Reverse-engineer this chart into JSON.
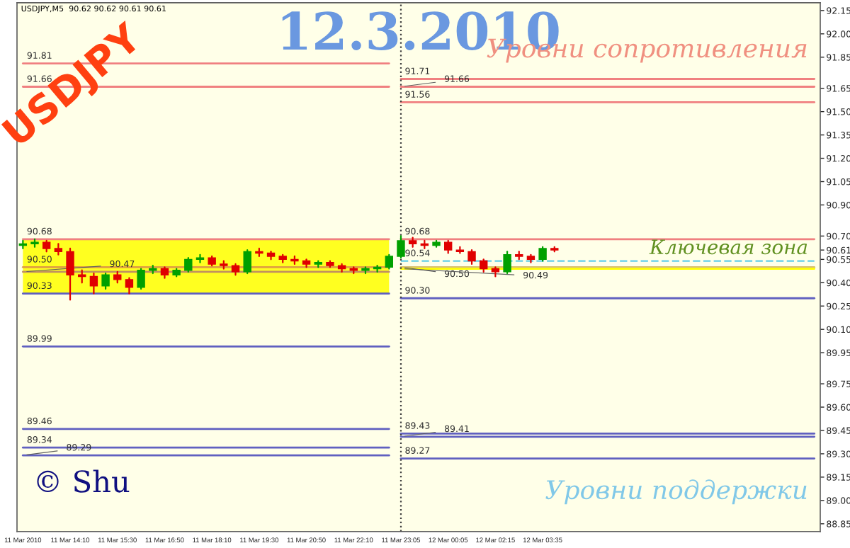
{
  "chart_data": {
    "type": "candlestick",
    "title": "12.3.2010",
    "categories": [
      "11 Mar 2010",
      null,
      null,
      null,
      "11 Mar 14:10",
      null,
      null,
      null,
      "11 Mar 15:30",
      null,
      null,
      null,
      "11 Mar 16:50",
      null,
      null,
      null,
      "11 Mar 18:10",
      null,
      null,
      null,
      "11 Mar 19:30",
      null,
      null,
      null,
      "11 Mar 20:50",
      null,
      null,
      null,
      "11 Mar 22:10",
      null,
      null,
      null,
      "11 Mar 23:05",
      null,
      null,
      null,
      "12 Mar 00:05",
      null,
      null,
      null,
      "12 Mar 02:15",
      null,
      null,
      null,
      "12 Mar 03:35",
      null,
      null,
      null,
      null,
      null,
      null,
      null,
      null,
      null,
      null,
      null,
      null,
      null,
      null,
      null,
      null,
      null,
      null,
      null,
      null,
      null,
      null,
      null
    ],
    "ohlc": [
      [
        90.64,
        90.67,
        90.62,
        90.65
      ],
      [
        90.65,
        90.68,
        90.63,
        90.66
      ],
      [
        90.66,
        90.67,
        90.6,
        90.62
      ],
      [
        90.62,
        90.65,
        90.58,
        90.6
      ],
      [
        90.6,
        90.62,
        90.29,
        90.45
      ],
      [
        90.45,
        90.48,
        90.4,
        90.44
      ],
      [
        90.44,
        90.46,
        90.33,
        90.38
      ],
      [
        90.38,
        90.46,
        90.36,
        90.45
      ],
      [
        90.45,
        90.47,
        90.4,
        90.42
      ],
      [
        90.42,
        90.43,
        90.33,
        90.37
      ],
      [
        90.37,
        90.49,
        90.36,
        90.48
      ],
      [
        90.48,
        90.51,
        90.46,
        90.49
      ],
      [
        90.49,
        90.5,
        90.43,
        90.45
      ],
      [
        90.45,
        90.49,
        90.44,
        90.48
      ],
      [
        90.48,
        90.56,
        90.47,
        90.55
      ],
      [
        90.55,
        90.58,
        90.53,
        90.56
      ],
      [
        90.56,
        90.57,
        90.51,
        90.52
      ],
      [
        90.52,
        90.54,
        90.49,
        90.51
      ],
      [
        90.51,
        90.52,
        90.45,
        90.47
      ],
      [
        90.47,
        90.61,
        90.46,
        90.6
      ],
      [
        90.6,
        90.62,
        90.57,
        90.59
      ],
      [
        90.59,
        90.6,
        90.55,
        90.57
      ],
      [
        90.57,
        90.58,
        90.53,
        90.55
      ],
      [
        90.55,
        90.57,
        90.52,
        90.54
      ],
      [
        90.54,
        90.55,
        90.5,
        90.52
      ],
      [
        90.52,
        90.54,
        90.5,
        90.53
      ],
      [
        90.53,
        90.54,
        90.5,
        90.51
      ],
      [
        90.51,
        90.52,
        90.47,
        90.49
      ],
      [
        90.49,
        90.5,
        90.46,
        90.48
      ],
      [
        90.48,
        90.5,
        90.46,
        90.49
      ],
      [
        90.49,
        90.51,
        90.47,
        90.5
      ],
      [
        90.5,
        90.58,
        90.49,
        90.57
      ],
      [
        90.57,
        90.7,
        90.56,
        90.67
      ],
      [
        90.67,
        90.69,
        90.63,
        90.65
      ],
      [
        90.65,
        90.67,
        90.62,
        90.64
      ],
      [
        90.64,
        90.67,
        90.63,
        90.66
      ],
      [
        90.66,
        90.67,
        90.59,
        90.61
      ],
      [
        90.61,
        90.63,
        90.59,
        90.6
      ],
      [
        90.6,
        90.61,
        90.52,
        90.54
      ],
      [
        90.54,
        90.55,
        90.47,
        90.49
      ],
      [
        90.49,
        90.5,
        90.44,
        90.47
      ],
      [
        90.47,
        90.6,
        90.46,
        90.58
      ],
      [
        90.58,
        90.6,
        90.55,
        90.57
      ],
      [
        90.57,
        90.58,
        90.53,
        90.55
      ],
      [
        90.55,
        90.63,
        90.54,
        90.62
      ],
      [
        90.62,
        90.63,
        90.6,
        90.61
      ],
      null,
      null,
      null,
      null,
      null,
      null,
      null,
      null,
      null,
      null,
      null,
      null,
      null,
      null,
      null,
      null,
      null,
      null,
      null,
      null,
      null,
      null
    ],
    "colors": [
      "#00a000",
      "#00a000",
      "#e00000",
      "#e00000",
      "#e00000",
      "#e00000",
      "#e00000",
      "#00a000",
      "#e00000",
      "#e00000",
      "#00a000",
      "#00a000",
      "#e00000",
      "#00a000",
      "#00a000",
      "#00a000",
      "#e00000",
      "#e00000",
      "#e00000",
      "#00a000",
      "#e00000",
      "#e00000",
      "#e00000",
      "#e00000",
      "#e00000",
      "#00a000",
      "#e00000",
      "#e00000",
      "#e00000",
      "#00a000",
      "#00a000",
      "#00a000",
      "#00a000",
      "#e00000",
      "#e00000",
      "#00a000",
      "#e00000",
      "#e00000",
      "#e00000",
      "#e00000",
      "#e00000",
      "#00a000",
      "#e00000",
      "#e00000",
      "#00a000",
      "#e00000",
      null,
      null,
      null,
      null,
      null,
      null,
      null,
      null,
      null,
      null,
      null,
      null,
      null,
      null,
      null,
      null,
      null,
      null,
      null,
      null,
      null,
      null
    ],
    "series": [
      {
        "type": "line",
        "color": "#f08080",
        "values": [
          91.81,
          91.81,
          91.81,
          91.81,
          91.81,
          91.81,
          91.81,
          91.81,
          91.81,
          91.81,
          91.81,
          91.81,
          91.81,
          91.81,
          91.81,
          91.81,
          91.81,
          91.81,
          91.81,
          91.81,
          91.81,
          91.81,
          91.81,
          91.81,
          91.81,
          91.81,
          91.81,
          91.81,
          91.81,
          91.81,
          91.81,
          91.81,
          null,
          null,
          null,
          null,
          null,
          null,
          null,
          null,
          null,
          null,
          null,
          null,
          null,
          null,
          null,
          null,
          null,
          null,
          null,
          null,
          null,
          null,
          null,
          null,
          null,
          null,
          null,
          null,
          null,
          null,
          null,
          null,
          null,
          null,
          null,
          null
        ]
      },
      {
        "type": "line",
        "color": "#f08080",
        "values": [
          91.66,
          91.66,
          91.66,
          91.66,
          91.66,
          91.66,
          91.66,
          91.66,
          91.66,
          91.66,
          91.66,
          91.66,
          91.66,
          91.66,
          91.66,
          91.66,
          91.66,
          91.66,
          91.66,
          91.66,
          91.66,
          91.66,
          91.66,
          91.66,
          91.66,
          91.66,
          91.66,
          91.66,
          91.66,
          91.66,
          91.66,
          91.66,
          null,
          null,
          null,
          null,
          null,
          null,
          null,
          null,
          null,
          null,
          null,
          null,
          null,
          null,
          null,
          null,
          null,
          null,
          null,
          null,
          null,
          null,
          null,
          null,
          null,
          null,
          null,
          null,
          null,
          null,
          null,
          null,
          null,
          null,
          null,
          null
        ]
      },
      {
        "type": "line",
        "color": "#f08080",
        "values": [
          90.68,
          90.68,
          90.68,
          90.68,
          90.68,
          90.68,
          90.68,
          90.68,
          90.68,
          90.68,
          90.68,
          90.68,
          90.68,
          90.68,
          90.68,
          90.68,
          90.68,
          90.68,
          90.68,
          90.68,
          90.68,
          90.68,
          90.68,
          90.68,
          90.68,
          90.68,
          90.68,
          90.68,
          90.68,
          90.68,
          90.68,
          90.68,
          null,
          null,
          null,
          null,
          null,
          null,
          null,
          null,
          null,
          null,
          null,
          null,
          null,
          null,
          null,
          null,
          null,
          null,
          null,
          null,
          null,
          null,
          null,
          null,
          null,
          null,
          null,
          null,
          null,
          null,
          null,
          null,
          null,
          null,
          null,
          null
        ]
      },
      {
        "type": "line",
        "color": "#e0a040",
        "values": [
          90.5,
          90.5,
          90.5,
          90.5,
          90.5,
          90.5,
          90.5,
          90.5,
          90.5,
          90.5,
          90.5,
          90.5,
          90.5,
          90.5,
          90.5,
          90.5,
          90.5,
          90.5,
          90.5,
          90.5,
          90.5,
          90.5,
          90.5,
          90.5,
          90.5,
          90.5,
          90.5,
          90.5,
          90.5,
          90.5,
          90.5,
          90.5,
          null,
          null,
          null,
          null,
          null,
          null,
          null,
          null,
          null,
          null,
          null,
          null,
          null,
          null,
          null,
          null,
          null,
          null,
          null,
          null,
          null,
          null,
          null,
          null,
          null,
          null,
          null,
          null,
          null,
          null,
          null,
          null,
          null,
          null,
          null,
          null
        ],
        "lower": [
          90.33,
          90.33,
          90.33,
          90.33,
          90.33,
          90.33,
          90.33,
          90.33,
          90.33,
          90.33,
          90.33,
          90.33,
          90.33,
          90.33,
          90.33,
          90.33,
          90.33,
          90.33,
          90.33,
          90.33,
          90.33,
          90.33,
          90.33,
          90.33,
          90.33,
          90.33,
          90.33,
          90.33,
          90.33,
          90.33,
          90.33,
          90.33,
          null,
          null,
          null,
          null,
          null,
          null,
          null,
          null,
          null,
          null,
          null,
          null,
          null,
          null,
          null,
          null,
          null,
          null,
          null,
          null,
          null,
          null,
          null,
          null,
          null,
          null,
          null,
          null,
          null,
          null,
          null,
          null,
          null,
          null,
          null,
          null
        ],
        "upper": [
          90.68,
          90.68,
          90.68,
          90.68,
          90.68,
          90.68,
          90.68,
          90.68,
          90.68,
          90.68,
          90.68,
          90.68,
          90.68,
          90.68,
          90.68,
          90.68,
          90.68,
          90.68,
          90.68,
          90.68,
          90.68,
          90.68,
          90.68,
          90.68,
          90.68,
          90.68,
          90.68,
          90.68,
          90.68,
          90.68,
          90.68,
          90.68,
          null,
          null,
          null,
          null,
          null,
          null,
          null,
          null,
          null,
          null,
          null,
          null,
          null,
          null,
          null,
          null,
          null,
          null,
          null,
          null,
          null,
          null,
          null,
          null,
          null,
          null,
          null,
          null,
          null,
          null,
          null,
          null,
          null,
          null,
          null,
          null
        ]
      },
      {
        "type": "line",
        "color": "#c09060",
        "values": [
          90.47,
          90.47,
          90.47,
          90.47,
          90.47,
          90.47,
          90.47,
          90.47,
          90.47,
          90.47,
          90.47,
          90.47,
          90.47,
          90.47,
          90.47,
          90.47,
          90.47,
          90.47,
          90.47,
          90.47,
          90.47,
          90.47,
          90.47,
          90.47,
          90.47,
          90.47,
          90.47,
          90.47,
          90.47,
          90.47,
          90.47,
          90.47,
          null,
          null,
          null,
          null,
          null,
          null,
          null,
          null,
          null,
          null,
          null,
          null,
          null,
          null,
          null,
          null,
          null,
          null,
          null,
          null,
          null,
          null,
          null,
          null,
          null,
          null,
          null,
          null,
          null,
          null,
          null,
          null,
          null,
          null,
          null,
          null
        ]
      },
      {
        "type": "line",
        "color": "#6060c0",
        "values": [
          90.33,
          90.33,
          90.33,
          90.33,
          90.33,
          90.33,
          90.33,
          90.33,
          90.33,
          90.33,
          90.33,
          90.33,
          90.33,
          90.33,
          90.33,
          90.33,
          90.33,
          90.33,
          90.33,
          90.33,
          90.33,
          90.33,
          90.33,
          90.33,
          90.33,
          90.33,
          90.33,
          90.33,
          90.33,
          90.33,
          90.33,
          90.33,
          null,
          null,
          null,
          null,
          null,
          null,
          null,
          null,
          null,
          null,
          null,
          null,
          null,
          null,
          null,
          null,
          null,
          null,
          null,
          null,
          null,
          null,
          null,
          null,
          null,
          null,
          null,
          null,
          null,
          null,
          null,
          null,
          null,
          null,
          null,
          null
        ]
      },
      {
        "type": "line",
        "color": "#6060c0",
        "values": [
          89.99,
          89.99,
          89.99,
          89.99,
          89.99,
          89.99,
          89.99,
          89.99,
          89.99,
          89.99,
          89.99,
          89.99,
          89.99,
          89.99,
          89.99,
          89.99,
          89.99,
          89.99,
          89.99,
          89.99,
          89.99,
          89.99,
          89.99,
          89.99,
          89.99,
          89.99,
          89.99,
          89.99,
          89.99,
          89.99,
          89.99,
          89.99,
          null,
          null,
          null,
          null,
          null,
          null,
          null,
          null,
          null,
          null,
          null,
          null,
          null,
          null,
          null,
          null,
          null,
          null,
          null,
          null,
          null,
          null,
          null,
          null,
          null,
          null,
          null,
          null,
          null,
          null,
          null,
          null,
          null,
          null,
          null,
          null
        ]
      },
      {
        "type": "line",
        "color": "#6060c0",
        "values": [
          89.46,
          89.46,
          89.46,
          89.46,
          89.46,
          89.46,
          89.46,
          89.46,
          89.46,
          89.46,
          89.46,
          89.46,
          89.46,
          89.46,
          89.46,
          89.46,
          89.46,
          89.46,
          89.46,
          89.46,
          89.46,
          89.46,
          89.46,
          89.46,
          89.46,
          89.46,
          89.46,
          89.46,
          89.46,
          89.46,
          89.46,
          89.46,
          null,
          null,
          null,
          null,
          null,
          null,
          null,
          null,
          null,
          null,
          null,
          null,
          null,
          null,
          null,
          null,
          null,
          null,
          null,
          null,
          null,
          null,
          null,
          null,
          null,
          null,
          null,
          null,
          null,
          null,
          null,
          null,
          null,
          null,
          null,
          null
        ]
      },
      {
        "type": "line",
        "color": "#6060c0",
        "values": [
          89.34,
          89.34,
          89.34,
          89.34,
          89.34,
          89.34,
          89.34,
          89.34,
          89.34,
          89.34,
          89.34,
          89.34,
          89.34,
          89.34,
          89.34,
          89.34,
          89.34,
          89.34,
          89.34,
          89.34,
          89.34,
          89.34,
          89.34,
          89.34,
          89.34,
          89.34,
          89.34,
          89.34,
          89.34,
          89.34,
          89.34,
          89.34,
          null,
          null,
          null,
          null,
          null,
          null,
          null,
          null,
          null,
          null,
          null,
          null,
          null,
          null,
          null,
          null,
          null,
          null,
          null,
          null,
          null,
          null,
          null,
          null,
          null,
          null,
          null,
          null,
          null,
          null,
          null,
          null,
          null,
          null,
          null,
          null
        ]
      },
      {
        "type": "line",
        "color": "#6060c0",
        "values": [
          89.29,
          89.29,
          89.29,
          89.29,
          89.29,
          89.29,
          89.29,
          89.29,
          89.29,
          89.29,
          89.29,
          89.29,
          89.29,
          89.29,
          89.29,
          89.29,
          89.29,
          89.29,
          89.29,
          89.29,
          89.29,
          89.29,
          89.29,
          89.29,
          89.29,
          89.29,
          89.29,
          89.29,
          89.29,
          89.29,
          89.29,
          89.29,
          null,
          null,
          null,
          null,
          null,
          null,
          null,
          null,
          null,
          null,
          null,
          null,
          null,
          null,
          null,
          null,
          null,
          null,
          null,
          null,
          null,
          null,
          null,
          null,
          null,
          null,
          null,
          null,
          null,
          null,
          null,
          null,
          null,
          null,
          null,
          null
        ]
      },
      {
        "type": "line",
        "color": "#f08080",
        "values": [
          null,
          null,
          null,
          null,
          null,
          null,
          null,
          null,
          null,
          null,
          null,
          null,
          null,
          null,
          null,
          null,
          null,
          null,
          null,
          null,
          null,
          null,
          null,
          null,
          null,
          null,
          null,
          null,
          null,
          null,
          null,
          null,
          91.71,
          91.71,
          91.71,
          91.71,
          91.71,
          91.71,
          91.71,
          91.71,
          91.71,
          91.71,
          91.71,
          91.71,
          91.71,
          91.71,
          91.71,
          91.71,
          91.71,
          91.71,
          91.71,
          91.71,
          91.71,
          91.71,
          91.71,
          91.71,
          91.71,
          91.71,
          91.71,
          91.71,
          91.71,
          91.71,
          91.71,
          91.71,
          91.71,
          91.71,
          91.71,
          91.71
        ]
      },
      {
        "type": "line",
        "color": "#f08080",
        "values": [
          null,
          null,
          null,
          null,
          null,
          null,
          null,
          null,
          null,
          null,
          null,
          null,
          null,
          null,
          null,
          null,
          null,
          null,
          null,
          null,
          null,
          null,
          null,
          null,
          null,
          null,
          null,
          null,
          null,
          null,
          null,
          null,
          91.66,
          91.66,
          91.66,
          91.66,
          91.66,
          91.66,
          91.66,
          91.66,
          91.66,
          91.66,
          91.66,
          91.66,
          91.66,
          91.66,
          91.66,
          91.66,
          91.66,
          91.66,
          91.66,
          91.66,
          91.66,
          91.66,
          91.66,
          91.66,
          91.66,
          91.66,
          91.66,
          91.66,
          91.66,
          91.66,
          91.66,
          91.66,
          91.66,
          91.66,
          91.66,
          91.66
        ]
      },
      {
        "type": "line",
        "color": "#f08080",
        "values": [
          null,
          null,
          null,
          null,
          null,
          null,
          null,
          null,
          null,
          null,
          null,
          null,
          null,
          null,
          null,
          null,
          null,
          null,
          null,
          null,
          null,
          null,
          null,
          null,
          null,
          null,
          null,
          null,
          null,
          null,
          null,
          null,
          91.56,
          91.56,
          91.56,
          91.56,
          91.56,
          91.56,
          91.56,
          91.56,
          91.56,
          91.56,
          91.56,
          91.56,
          91.56,
          91.56,
          91.56,
          91.56,
          91.56,
          91.56,
          91.56,
          91.56,
          91.56,
          91.56,
          91.56,
          91.56,
          91.56,
          91.56,
          91.56,
          91.56,
          91.56,
          91.56,
          91.56,
          91.56,
          91.56,
          91.56,
          91.56,
          91.56
        ]
      },
      {
        "type": "line",
        "color": "#f08080",
        "values": [
          null,
          null,
          null,
          null,
          null,
          null,
          null,
          null,
          null,
          null,
          null,
          null,
          null,
          null,
          null,
          null,
          null,
          null,
          null,
          null,
          null,
          null,
          null,
          null,
          null,
          null,
          null,
          null,
          null,
          null,
          null,
          null,
          90.68,
          90.68,
          90.68,
          90.68,
          90.68,
          90.68,
          90.68,
          90.68,
          90.68,
          90.68,
          90.68,
          90.68,
          90.68,
          90.68,
          90.68,
          90.68,
          90.68,
          90.68,
          90.68,
          90.68,
          90.68,
          90.68,
          90.68,
          90.68,
          90.68,
          90.68,
          90.68,
          90.68,
          90.68,
          90.68,
          90.68,
          90.68,
          90.68,
          90.68,
          90.68,
          90.68
        ]
      },
      {
        "type": "line",
        "color": "#80d8e8",
        "line_style": "dashed",
        "values": [
          null,
          null,
          null,
          null,
          null,
          null,
          null,
          null,
          null,
          null,
          null,
          null,
          null,
          null,
          null,
          null,
          null,
          null,
          null,
          null,
          null,
          null,
          null,
          null,
          null,
          null,
          null,
          null,
          null,
          null,
          null,
          null,
          90.54,
          90.54,
          90.54,
          90.54,
          90.54,
          90.54,
          90.54,
          90.54,
          90.54,
          90.54,
          90.54,
          90.54,
          90.54,
          90.54,
          90.54,
          90.54,
          90.54,
          90.54,
          90.54,
          90.54,
          90.54,
          90.54,
          90.54,
          90.54,
          90.54,
          90.54,
          90.54,
          90.54,
          90.54,
          90.54,
          90.54,
          90.54,
          90.54,
          90.54,
          90.54,
          90.54
        ]
      },
      {
        "type": "line",
        "color": "#d8c070",
        "values": [
          null,
          null,
          null,
          null,
          null,
          null,
          null,
          null,
          null,
          null,
          null,
          null,
          null,
          null,
          null,
          null,
          null,
          null,
          null,
          null,
          null,
          null,
          null,
          null,
          null,
          null,
          null,
          null,
          null,
          null,
          null,
          null,
          90.5,
          90.5,
          90.5,
          90.5,
          90.5,
          90.5,
          90.5,
          90.5,
          90.5,
          90.5,
          90.5,
          90.5,
          90.5,
          90.5,
          90.5,
          90.5,
          90.5,
          90.5,
          90.5,
          90.5,
          90.5,
          90.5,
          90.5,
          90.5,
          90.5,
          90.5,
          90.5,
          90.5,
          90.5,
          90.5,
          90.5,
          90.5,
          90.5,
          90.5,
          90.5,
          90.5
        ]
      },
      {
        "type": "line",
        "color": "#ffff00",
        "values": [
          null,
          null,
          null,
          null,
          null,
          null,
          null,
          null,
          null,
          null,
          null,
          null,
          null,
          null,
          null,
          null,
          null,
          null,
          null,
          null,
          null,
          null,
          null,
          null,
          null,
          null,
          null,
          null,
          null,
          null,
          null,
          null,
          90.49,
          90.49,
          90.49,
          90.49,
          90.49,
          90.49,
          90.49,
          90.49,
          90.49,
          90.49,
          90.49,
          90.49,
          90.49,
          90.49,
          90.49,
          90.49,
          90.49,
          90.49,
          90.49,
          90.49,
          90.49,
          90.49,
          90.49,
          90.49,
          90.49,
          90.49,
          90.49,
          90.49,
          90.49,
          90.49,
          90.49,
          90.49,
          90.49,
          90.49,
          90.49,
          90.49
        ]
      },
      {
        "type": "line",
        "color": "#6060c0",
        "values": [
          null,
          null,
          null,
          null,
          null,
          null,
          null,
          null,
          null,
          null,
          null,
          null,
          null,
          null,
          null,
          null,
          null,
          null,
          null,
          null,
          null,
          null,
          null,
          null,
          null,
          null,
          null,
          null,
          null,
          null,
          null,
          null,
          90.3,
          90.3,
          90.3,
          90.3,
          90.3,
          90.3,
          90.3,
          90.3,
          90.3,
          90.3,
          90.3,
          90.3,
          90.3,
          90.3,
          90.3,
          90.3,
          90.3,
          90.3,
          90.3,
          90.3,
          90.3,
          90.3,
          90.3,
          90.3,
          90.3,
          90.3,
          90.3,
          90.3,
          90.3,
          90.3,
          90.3,
          90.3,
          90.3,
          90.3,
          90.3,
          90.3
        ]
      },
      {
        "type": "line",
        "color": "#6060c0",
        "values": [
          null,
          null,
          null,
          null,
          null,
          null,
          null,
          null,
          null,
          null,
          null,
          null,
          null,
          null,
          null,
          null,
          null,
          null,
          null,
          null,
          null,
          null,
          null,
          null,
          null,
          null,
          null,
          null,
          null,
          null,
          null,
          null,
          89.43,
          89.43,
          89.43,
          89.43,
          89.43,
          89.43,
          89.43,
          89.43,
          89.43,
          89.43,
          89.43,
          89.43,
          89.43,
          89.43,
          89.43,
          89.43,
          89.43,
          89.43,
          89.43,
          89.43,
          89.43,
          89.43,
          89.43,
          89.43,
          89.43,
          89.43,
          89.43,
          89.43,
          89.43,
          89.43,
          89.43,
          89.43,
          89.43,
          89.43,
          89.43,
          89.43
        ]
      },
      {
        "type": "line",
        "color": "#6060c0",
        "values": [
          null,
          null,
          null,
          null,
          null,
          null,
          null,
          null,
          null,
          null,
          null,
          null,
          null,
          null,
          null,
          null,
          null,
          null,
          null,
          null,
          null,
          null,
          null,
          null,
          null,
          null,
          null,
          null,
          null,
          null,
          null,
          null,
          89.41,
          89.41,
          89.41,
          89.41,
          89.41,
          89.41,
          89.41,
          89.41,
          89.41,
          89.41,
          89.41,
          89.41,
          89.41,
          89.41,
          89.41,
          89.41,
          89.41,
          89.41,
          89.41,
          89.41,
          89.41,
          89.41,
          89.41,
          89.41,
          89.41,
          89.41,
          89.41,
          89.41,
          89.41,
          89.41,
          89.41,
          89.41,
          89.41,
          89.41,
          89.41,
          89.41
        ]
      },
      {
        "type": "line",
        "color": "#6060c0",
        "values": [
          null,
          null,
          null,
          null,
          null,
          null,
          null,
          null,
          null,
          null,
          null,
          null,
          null,
          null,
          null,
          null,
          null,
          null,
          null,
          null,
          null,
          null,
          null,
          null,
          null,
          null,
          null,
          null,
          null,
          null,
          null,
          null,
          89.27,
          89.27,
          89.27,
          89.27,
          89.27,
          89.27,
          89.27,
          89.27,
          89.27,
          89.27,
          89.27,
          89.27,
          89.27,
          89.27,
          89.27,
          89.27,
          89.27,
          89.27,
          89.27,
          89.27,
          89.27,
          89.27,
          89.27,
          89.27,
          89.27,
          89.27,
          89.27,
          89.27,
          89.27,
          89.27,
          89.27,
          89.27,
          89.27,
          89.27,
          89.27,
          89.27
        ]
      }
    ],
    "ylim": [
      88.8,
      92.2
    ],
    "yticks": [
      92.15,
      {
        "value": 92.0,
        "label": "92.00"
      },
      91.85,
      91.65,
      {
        "value": 91.5,
        "label": "91.50"
      },
      91.35,
      {
        "value": 91.2,
        "label": "91.20"
      },
      91.05,
      {
        "value": 90.9,
        "label": "90.90"
      },
      {
        "value": 90.7,
        "label": "90.70"
      },
      90.61,
      90.55,
      {
        "value": 90.4,
        "label": "90.40"
      },
      90.25,
      {
        "value": 90.1,
        "label": "90.10"
      },
      89.95,
      89.75,
      {
        "value": 89.6,
        "label": "89.60"
      },
      89.45,
      {
        "value": 89.3,
        "label": "89.30"
      },
      89.15,
      {
        "value": 89.0,
        "label": "89.00"
      },
      88.85
    ],
    "ref_lines": [
      {
        "axis": "x",
        "value": "11 Mar 23:05",
        "color": "#404040",
        "line_style": "dotted"
      }
    ],
    "annotations": [
      "USDJPY,M5  90.62 90.62 90.61 90.61",
      "USDJPY",
      "Уровни сопротивления",
      "Ключевая зона",
      "Уровни поддержки",
      "© Shu",
      {
        "text": "91.81",
        "x": "11 Mar 2010",
        "y": 91.81
      },
      {
        "text": "91.66",
        "x": "11 Mar 2010",
        "y": 91.66
      },
      {
        "text": "90.68",
        "x": "11 Mar 2010",
        "y": 90.68
      },
      {
        "text": "90.50",
        "x": "11 Mar 2010",
        "y": 90.5
      },
      {
        "text": "90.47",
        "x": "11 Mar 2010",
        "y": 90.47
      },
      {
        "text": "90.33",
        "x": "11 Mar 2010",
        "y": 90.33
      },
      {
        "text": "89.99",
        "x": "11 Mar 2010",
        "y": 89.99
      },
      {
        "text": "89.46",
        "x": "11 Mar 2010",
        "y": 89.46
      },
      {
        "text": "89.34",
        "x": "11 Mar 2010",
        "y": 89.34
      },
      {
        "text": "89.29",
        "x": "11 Mar 2010",
        "y": 89.29
      },
      {
        "text": "91.71",
        "x": "11 Mar 23:05",
        "y": 91.71
      },
      {
        "text": "91.66",
        "x": "11 Mar 23:05",
        "y": 91.66
      },
      {
        "text": "91.56",
        "x": "11 Mar 23:05",
        "y": 91.56
      },
      {
        "text": "90.68",
        "x": "11 Mar 23:05",
        "y": 90.68
      },
      {
        "text": "90.54",
        "x": "11 Mar 23:05",
        "y": 90.54
      },
      {
        "text": "90.50",
        "x": "11 Mar 23:05",
        "y": 90.5
      },
      {
        "text": "90.49",
        "x": "11 Mar 23:05",
        "y": 90.49
      },
      {
        "text": "90.30",
        "x": "11 Mar 23:05",
        "y": 90.3
      },
      {
        "text": "89.43",
        "x": "11 Mar 23:05",
        "y": 89.43
      },
      {
        "text": "89.41",
        "x": "11 Mar 23:05",
        "y": 89.41
      },
      {
        "text": "89.27",
        "x": "11 Mar 23:05",
        "y": 89.27
      }
    ]
  }
}
